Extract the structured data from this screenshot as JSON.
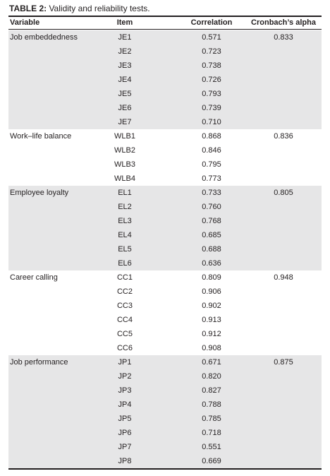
{
  "caption": {
    "label": "TABLE 2:",
    "text": " Validity and reliability tests."
  },
  "columns": {
    "variable": "Variable",
    "item": "Item",
    "correlation": "Correlation",
    "alpha": "Cronbach’s alpha"
  },
  "colors": {
    "shade": "#e6e6e7",
    "text": "#231f20"
  },
  "groups": [
    {
      "variable": "Job embeddedness",
      "alpha": "0.833",
      "shaded": true,
      "rows": [
        {
          "item": "JE1",
          "correlation": "0.571"
        },
        {
          "item": "JE2",
          "correlation": "0.723"
        },
        {
          "item": "JE3",
          "correlation": "0.738"
        },
        {
          "item": "JE4",
          "correlation": "0.726"
        },
        {
          "item": "JE5",
          "correlation": "0.793"
        },
        {
          "item": "JE6",
          "correlation": "0.739"
        },
        {
          "item": "JE7",
          "correlation": "0.710"
        }
      ]
    },
    {
      "variable": "Work–life balance",
      "alpha": "0.836",
      "shaded": false,
      "rows": [
        {
          "item": "WLB1",
          "correlation": "0.868"
        },
        {
          "item": "WLB2",
          "correlation": "0.846"
        },
        {
          "item": "WLB3",
          "correlation": "0.795"
        },
        {
          "item": "WLB4",
          "correlation": "0.773"
        }
      ]
    },
    {
      "variable": "Employee loyalty",
      "alpha": "0.805",
      "shaded": true,
      "rows": [
        {
          "item": "EL1",
          "correlation": "0.733"
        },
        {
          "item": "EL2",
          "correlation": "0.760"
        },
        {
          "item": "EL3",
          "correlation": "0.768"
        },
        {
          "item": "EL4",
          "correlation": "0.685"
        },
        {
          "item": "EL5",
          "correlation": "0.688"
        },
        {
          "item": "EL6",
          "correlation": "0.636"
        }
      ]
    },
    {
      "variable": "Career calling",
      "alpha": "0.948",
      "shaded": false,
      "rows": [
        {
          "item": "CC1",
          "correlation": "0.809"
        },
        {
          "item": "CC2",
          "correlation": "0.906"
        },
        {
          "item": "CC3",
          "correlation": "0.902"
        },
        {
          "item": "CC4",
          "correlation": "0.913"
        },
        {
          "item": "CC5",
          "correlation": "0.912"
        },
        {
          "item": "CC6",
          "correlation": "0.908"
        }
      ]
    },
    {
      "variable": "Job performance",
      "alpha": "0.875",
      "shaded": true,
      "rows": [
        {
          "item": "JP1",
          "correlation": "0.671"
        },
        {
          "item": "JP2",
          "correlation": "0.820"
        },
        {
          "item": "JP3",
          "correlation": "0.827"
        },
        {
          "item": "JP4",
          "correlation": "0.788"
        },
        {
          "item": "JP5",
          "correlation": "0.785"
        },
        {
          "item": "JP6",
          "correlation": "0.718"
        },
        {
          "item": "JP7",
          "correlation": "0.551"
        },
        {
          "item": "JP8",
          "correlation": "0.669"
        }
      ]
    }
  ]
}
